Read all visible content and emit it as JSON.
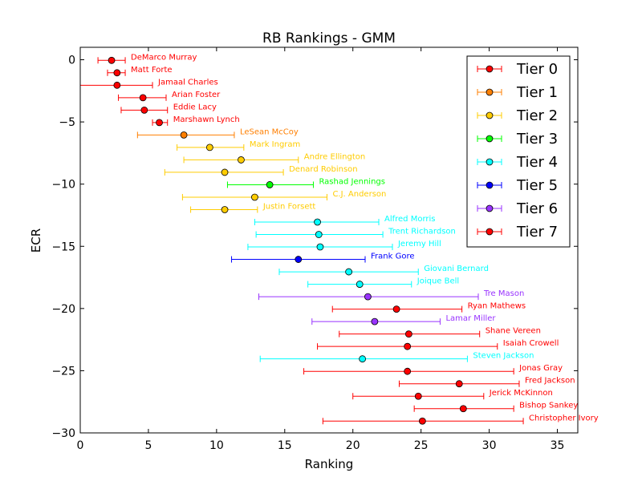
{
  "chart_data": {
    "type": "errorbar",
    "title": "RB Rankings - GMM",
    "xlabel": "Ranking",
    "ylabel": "ECR",
    "xlim": [
      0,
      36.5
    ],
    "ylim": [
      -30,
      1
    ],
    "x_ticks": [
      "0",
      "5",
      "10",
      "15",
      "20",
      "25",
      "30",
      "35"
    ],
    "y_ticks": [
      "0",
      "−5",
      "−10",
      "−15",
      "−20",
      "−25",
      "−30"
    ],
    "x_tick_values": [
      0,
      5,
      10,
      15,
      20,
      25,
      30,
      35
    ],
    "y_tick_values": [
      0,
      -5,
      -10,
      -15,
      -20,
      -25,
      -30
    ],
    "grid": false,
    "legend_position": "top-right",
    "tiers": [
      {
        "name": "Tier 0",
        "color": "#ff0000"
      },
      {
        "name": "Tier 1",
        "color": "#ff7f00"
      },
      {
        "name": "Tier 2",
        "color": "#ffcc00"
      },
      {
        "name": "Tier 3",
        "color": "#00ff00"
      },
      {
        "name": "Tier 4",
        "color": "#00ffff"
      },
      {
        "name": "Tier 5",
        "color": "#0000ff"
      },
      {
        "name": "Tier 6",
        "color": "#9933ff"
      },
      {
        "name": "Tier 7",
        "color": "#ff0000"
      }
    ],
    "players": [
      {
        "name": "DeMarco Murray",
        "tier": 0,
        "x": 2.3,
        "y": -0.05,
        "low": 1.3,
        "high": 3.3
      },
      {
        "name": "Matt Forte",
        "tier": 0,
        "x": 2.7,
        "y": -1.05,
        "low": 2.0,
        "high": 3.3
      },
      {
        "name": "Jamaal Charles",
        "tier": 0,
        "x": 2.7,
        "y": -2.05,
        "low": 0.0,
        "high": 5.3
      },
      {
        "name": "Arian Foster",
        "tier": 0,
        "x": 4.6,
        "y": -3.05,
        "low": 2.8,
        "high": 6.3
      },
      {
        "name": "Eddie Lacy",
        "tier": 0,
        "x": 4.7,
        "y": -4.05,
        "low": 3.0,
        "high": 6.4
      },
      {
        "name": "Marshawn Lynch",
        "tier": 0,
        "x": 5.8,
        "y": -5.05,
        "low": 5.3,
        "high": 6.4
      },
      {
        "name": "LeSean McCoy",
        "tier": 1,
        "x": 7.6,
        "y": -6.05,
        "low": 4.2,
        "high": 11.3
      },
      {
        "name": "Mark Ingram",
        "tier": 2,
        "x": 9.5,
        "y": -7.05,
        "low": 7.1,
        "high": 12.0
      },
      {
        "name": "Andre Ellington",
        "tier": 2,
        "x": 11.8,
        "y": -8.05,
        "low": 7.6,
        "high": 16.0
      },
      {
        "name": "Denard Robinson",
        "tier": 2,
        "x": 10.6,
        "y": -9.05,
        "low": 6.2,
        "high": 14.9
      },
      {
        "name": "Rashad Jennings",
        "tier": 3,
        "x": 13.9,
        "y": -10.05,
        "low": 10.8,
        "high": 17.1
      },
      {
        "name": "C.J. Anderson",
        "tier": 2,
        "x": 12.8,
        "y": -11.05,
        "low": 7.5,
        "high": 18.1
      },
      {
        "name": "Justin Forsett",
        "tier": 2,
        "x": 10.6,
        "y": -12.05,
        "low": 8.1,
        "high": 13.0
      },
      {
        "name": "Alfred Morris",
        "tier": 4,
        "x": 17.4,
        "y": -13.05,
        "low": 12.8,
        "high": 21.9
      },
      {
        "name": "Trent Richardson",
        "tier": 4,
        "x": 17.5,
        "y": -14.05,
        "low": 12.9,
        "high": 22.2
      },
      {
        "name": "Jeremy Hill",
        "tier": 4,
        "x": 17.6,
        "y": -15.05,
        "low": 12.3,
        "high": 22.9
      },
      {
        "name": "Frank Gore",
        "tier": 5,
        "x": 16.0,
        "y": -16.05,
        "low": 11.1,
        "high": 20.9
      },
      {
        "name": "Giovani Bernard",
        "tier": 4,
        "x": 19.7,
        "y": -17.05,
        "low": 14.6,
        "high": 24.8
      },
      {
        "name": "Joique Bell",
        "tier": 4,
        "x": 20.5,
        "y": -18.05,
        "low": 16.7,
        "high": 24.3
      },
      {
        "name": "Tre Mason",
        "tier": 6,
        "x": 21.1,
        "y": -19.05,
        "low": 13.1,
        "high": 29.2
      },
      {
        "name": "Ryan Mathews",
        "tier": 7,
        "x": 23.2,
        "y": -20.05,
        "low": 18.5,
        "high": 28.0
      },
      {
        "name": "Lamar Miller",
        "tier": 6,
        "x": 21.6,
        "y": -21.05,
        "low": 17.0,
        "high": 26.4
      },
      {
        "name": "Shane Vereen",
        "tier": 7,
        "x": 24.1,
        "y": -22.05,
        "low": 19.0,
        "high": 29.3
      },
      {
        "name": "Isaiah Crowell",
        "tier": 7,
        "x": 24.0,
        "y": -23.05,
        "low": 17.4,
        "high": 30.6
      },
      {
        "name": "Steven Jackson",
        "tier": 4,
        "x": 20.7,
        "y": -24.05,
        "low": 13.2,
        "high": 28.4
      },
      {
        "name": "Jonas Gray",
        "tier": 7,
        "x": 24.0,
        "y": -25.05,
        "low": 16.4,
        "high": 31.8
      },
      {
        "name": "Fred Jackson",
        "tier": 7,
        "x": 27.8,
        "y": -26.05,
        "low": 23.4,
        "high": 32.2
      },
      {
        "name": "Jerick McKinnon",
        "tier": 7,
        "x": 24.8,
        "y": -27.05,
        "low": 20.0,
        "high": 29.6
      },
      {
        "name": "Bishop Sankey",
        "tier": 7,
        "x": 28.1,
        "y": -28.05,
        "low": 24.5,
        "high": 31.8
      },
      {
        "name": "Christopher Ivory",
        "tier": 7,
        "x": 25.1,
        "y": -29.05,
        "low": 17.8,
        "high": 32.5
      }
    ]
  }
}
